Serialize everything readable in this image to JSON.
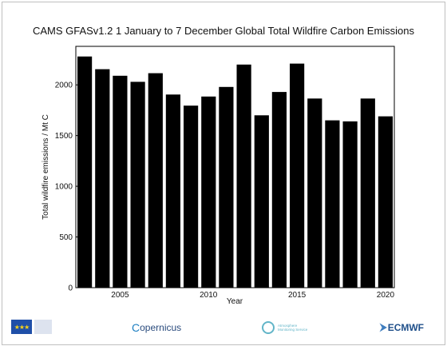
{
  "title": "CAMS GFASv1.2 1 January to 7 December Global Total Wildfire Carbon Emissions",
  "chart_data": {
    "type": "bar",
    "title": "CAMS GFASv1.2 1 January to 7 December Global Total Wildfire Carbon Emissions",
    "xlabel": "Year",
    "ylabel": "Total wildfire emissions / Mt C",
    "x": [
      2003,
      2004,
      2005,
      2006,
      2007,
      2008,
      2009,
      2010,
      2011,
      2012,
      2013,
      2014,
      2015,
      2016,
      2017,
      2018,
      2019,
      2020
    ],
    "values": [
      2280,
      2155,
      2090,
      2030,
      2115,
      1905,
      1795,
      1885,
      1980,
      2200,
      1700,
      1930,
      2210,
      1865,
      1650,
      1640,
      1865,
      1690
    ],
    "ylim": [
      0,
      2380
    ],
    "xlim": [
      2002.5,
      2020.5
    ],
    "yticks": [
      0,
      500,
      1000,
      1500,
      2000
    ],
    "xticks": [
      2005,
      2010,
      2015,
      2020
    ],
    "bar_color": "#000000",
    "grid": false
  },
  "logos": {
    "eu": "European Commission",
    "copernicus": "opernicus",
    "copernicus_c": "C",
    "atmosphere": "Atmosphere Monitoring Service",
    "ecmwf": "ECMWF"
  }
}
